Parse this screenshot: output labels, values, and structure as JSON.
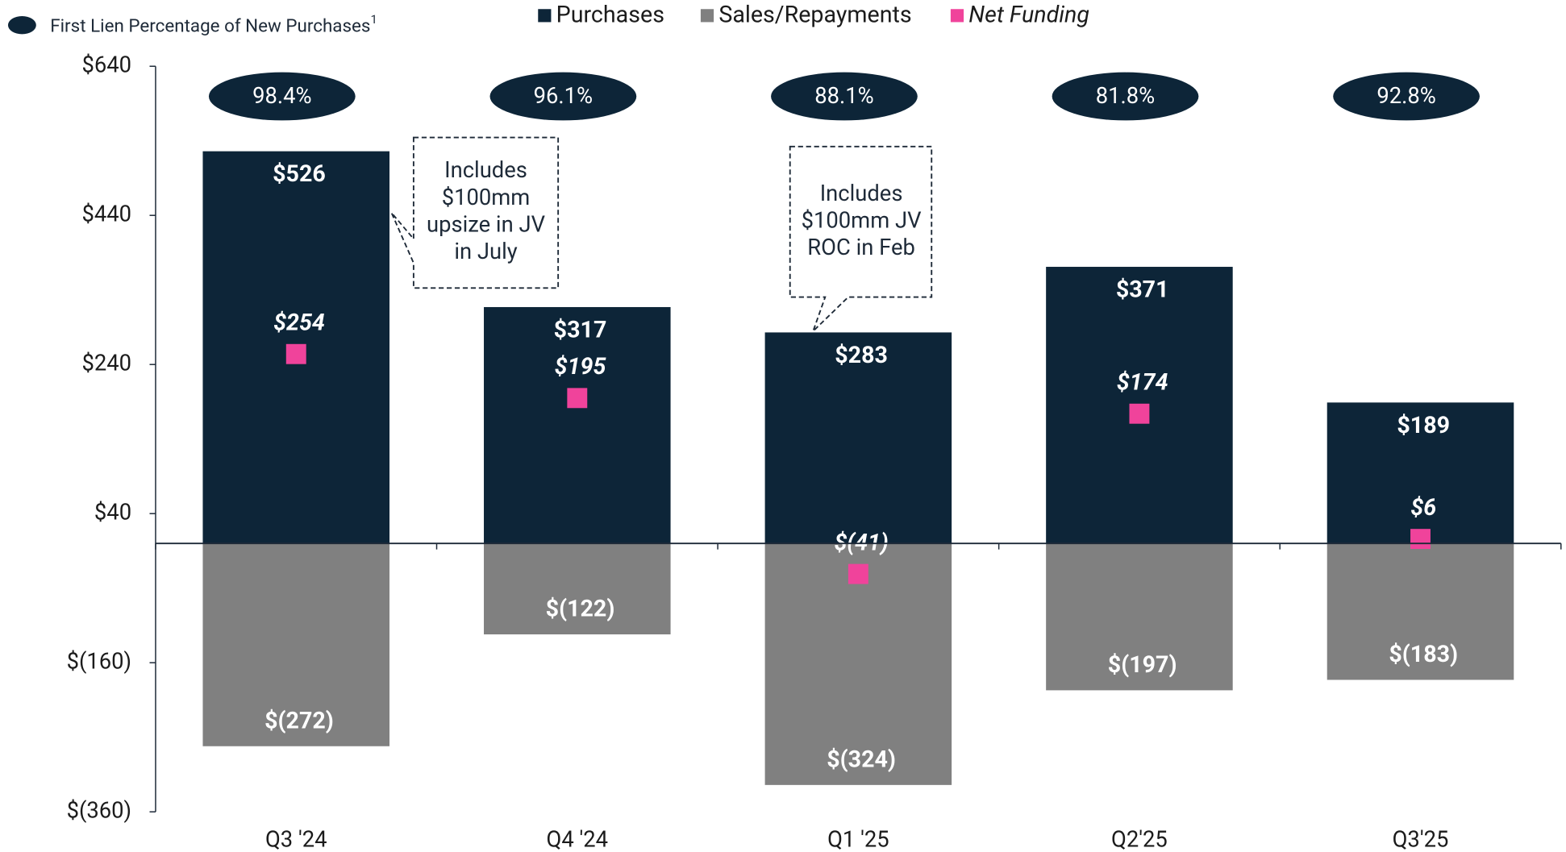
{
  "chart_data": {
    "type": "bar",
    "categories": [
      "Q3 '24",
      "Q4 '24",
      "Q1 '25",
      "Q2'25",
      "Q3'25"
    ],
    "series": [
      {
        "name": "Purchases",
        "color": "#0d2538",
        "values": [
          526,
          317,
          283,
          371,
          189
        ],
        "value_labels": [
          "$526",
          "$317",
          "$283",
          "$371",
          "$189"
        ]
      },
      {
        "name": "Sales/Repayments",
        "color": "#808080",
        "values": [
          -272,
          -122,
          -324,
          -197,
          -183
        ],
        "value_labels": [
          "$(272)",
          "$(122)",
          "$(324)",
          "$(197)",
          "$(183)"
        ]
      },
      {
        "name": "Net Funding",
        "color": "#f0439b",
        "type": "marker",
        "values": [
          254,
          195,
          -41,
          174,
          6
        ],
        "value_labels": [
          "$254",
          "$195",
          "$(41)",
          "$174",
          "$6"
        ]
      }
    ],
    "first_lien": {
      "name": "First Lien Percentage of New Purchases",
      "footnote": "1",
      "color": "#0d2538",
      "values": [
        98.4,
        96.1,
        88.1,
        81.8,
        92.8
      ],
      "value_labels": [
        "98.4%",
        "96.1%",
        "88.1%",
        "81.8%",
        "92.8%"
      ]
    },
    "ylim": [
      -360,
      640
    ],
    "yticks": [
      {
        "value": 640,
        "label": "$640"
      },
      {
        "value": 440,
        "label": "$440"
      },
      {
        "value": 240,
        "label": "$240"
      },
      {
        "value": 40,
        "label": "$40"
      },
      {
        "value": -160,
        "label": "$(160)"
      },
      {
        "value": -360,
        "label": "$(360)"
      }
    ],
    "annotations": [
      {
        "category": 0,
        "lines": [
          "Includes",
          "$100mm",
          "upsize in JV",
          "in July"
        ]
      },
      {
        "category": 2,
        "lines": [
          "Includes",
          "$100mm JV",
          "ROC in Feb"
        ]
      }
    ]
  }
}
